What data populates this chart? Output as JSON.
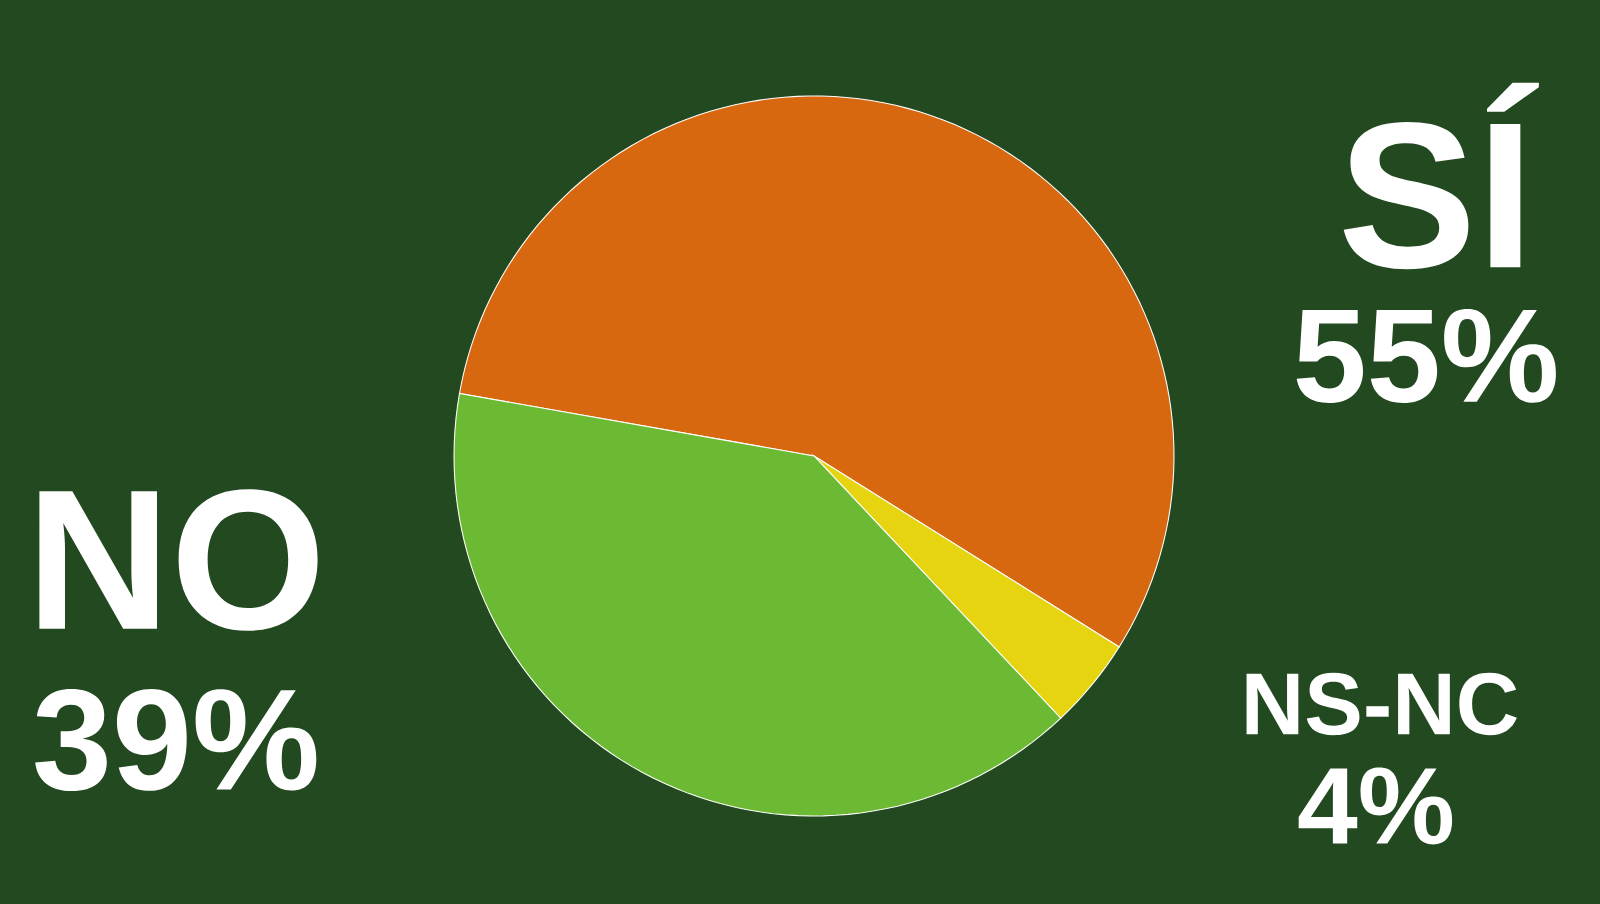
{
  "chart_data": {
    "type": "pie",
    "categories": [
      "SÍ",
      "NS-NC",
      "NO"
    ],
    "values": [
      55,
      4,
      39
    ],
    "colors": [
      "#d8680f",
      "#e6d410",
      "#6cba33"
    ],
    "value_labels": [
      "55%",
      "4%",
      "39%"
    ]
  }
}
